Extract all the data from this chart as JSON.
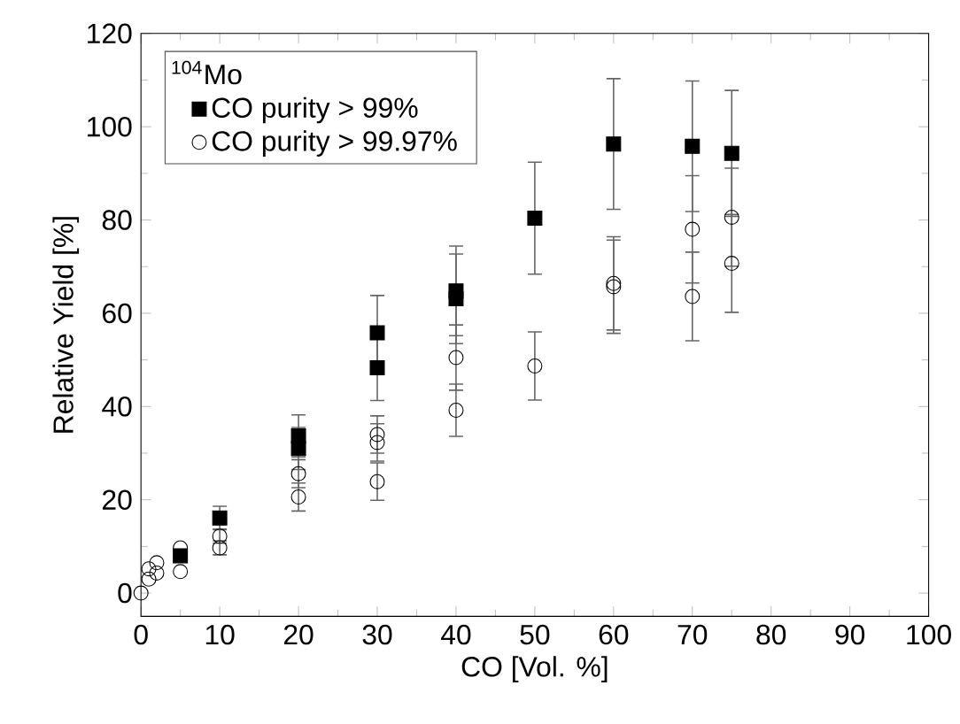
{
  "chart_data": {
    "type": "scatter",
    "xlabel": "CO [Vol. %]",
    "ylabel": "Relative Yield [%]",
    "legend_title": "$^{104}$Mo",
    "legend": "top left",
    "xlim": [
      0,
      100
    ],
    "ylim": [
      -5,
      120
    ],
    "xticks": [
      0,
      10,
      20,
      30,
      40,
      50,
      60,
      70,
      80,
      90,
      100
    ],
    "yticks": [
      0,
      20,
      40,
      60,
      80,
      100,
      120
    ],
    "grid": false,
    "series": [
      {
        "name": "CO purity > 99%",
        "color": "#000000",
        "marker": "square",
        "x": [
          5,
          10,
          20,
          20,
          30,
          30,
          40,
          40,
          50,
          60,
          70,
          75
        ],
        "values": [
          8,
          16.1,
          31,
          33.7,
          48.3,
          55.8,
          63.1,
          64.8,
          80.4,
          96.3,
          95.8,
          94.3
        ],
        "errors": [
          null,
          2.5,
          4.5,
          4.5,
          7,
          8,
          9.6,
          9.6,
          12,
          14,
          14,
          13.5
        ]
      },
      {
        "name": "CO purity > 99.97%",
        "color": "#000000",
        "marker": "circle",
        "x": [
          0,
          1,
          1,
          2,
          2,
          5,
          5,
          10,
          10,
          20,
          20,
          30,
          30,
          30,
          40,
          40,
          50,
          60,
          60,
          70,
          70,
          75,
          75
        ],
        "values": [
          0,
          3,
          5.2,
          4.3,
          6.5,
          4.6,
          9.7,
          9.7,
          12.2,
          20.6,
          25.6,
          23.9,
          32.3,
          34,
          39.2,
          50.5,
          48.7,
          65.7,
          66.4,
          63.6,
          78,
          70.7,
          80.6
        ],
        "errors": [
          null,
          null,
          null,
          null,
          null,
          null,
          null,
          1.5,
          1.5,
          3,
          3,
          4,
          4,
          4,
          5.6,
          7,
          7.3,
          10,
          10,
          9.5,
          11.5,
          10.5,
          10.5
        ]
      }
    ]
  }
}
